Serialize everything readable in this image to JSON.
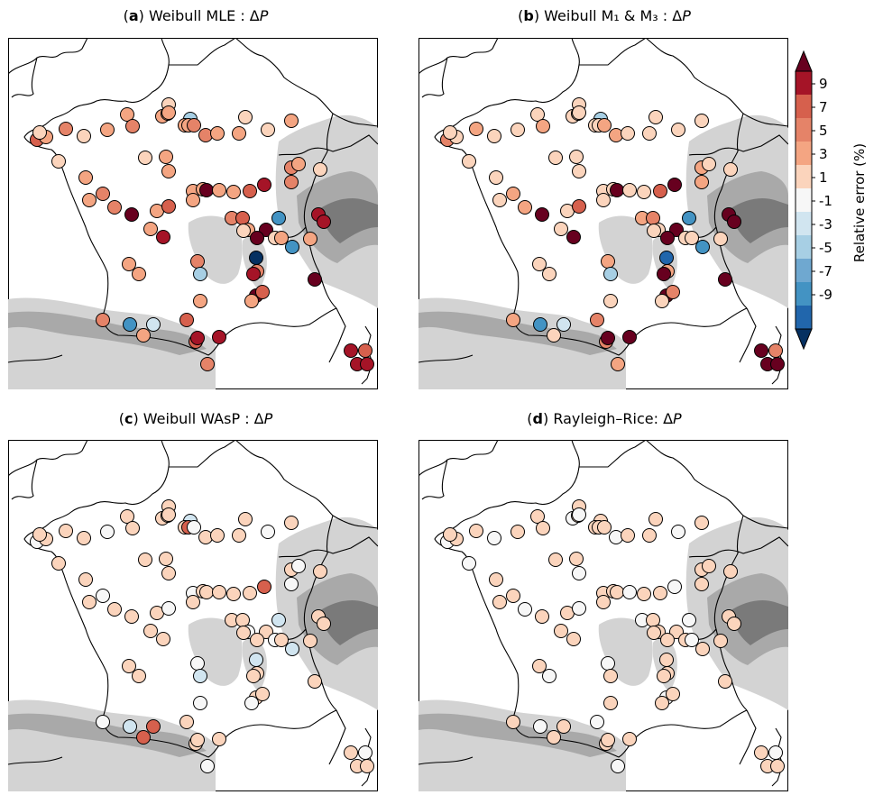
{
  "panels": [
    {
      "id": "a",
      "key": "a",
      "method": "Weibull MLE",
      "sep": " : "
    },
    {
      "id": "b",
      "key": "b",
      "method": "Weibull M₁ & M₃",
      "sep": " : "
    },
    {
      "id": "c",
      "key": "c",
      "method": "Weibull WAsP",
      "sep": " : "
    },
    {
      "id": "d",
      "key": "d",
      "method": "Rayleigh–Rice",
      "sep": ": "
    }
  ],
  "delta_symbol": "Δ",
  "delta_var": "P",
  "colorbar": {
    "label": "Relative error (%)",
    "ticks": [
      "9",
      "7",
      "5",
      "3",
      "1",
      "-1",
      "-3",
      "-5",
      "-7",
      "-9"
    ],
    "levels": [
      "#67001f",
      "#a51427",
      "#d6604d",
      "#e58368",
      "#f4a582",
      "#fbd4bc",
      "#f7f7f7",
      "#d1e5f0",
      "#a7cfe4",
      "#6fa8d0",
      "#4393c3",
      "#2166ac",
      "#053061"
    ]
  },
  "stations": {
    "a": [
      5,
      3,
      2,
      4,
      2,
      3,
      3,
      4,
      3,
      2,
      -3,
      3,
      3,
      3,
      3,
      4,
      4,
      3,
      3,
      2,
      2,
      3,
      1,
      3,
      3,
      3,
      3,
      9,
      3,
      4,
      3,
      2,
      1,
      3,
      3,
      4,
      4,
      9,
      3,
      3,
      6,
      3,
      3,
      6,
      8,
      4,
      8,
      8,
      4,
      5,
      3,
      9,
      -5,
      1,
      9,
      2,
      3,
      -5,
      3,
      -9,
      4,
      -4,
      8,
      3,
      3,
      3,
      4,
      8,
      9,
      5,
      3,
      9,
      5,
      5,
      8,
      4,
      -5,
      -2,
      3,
      8,
      4,
      8,
      8,
      8
    ]
  }
}
